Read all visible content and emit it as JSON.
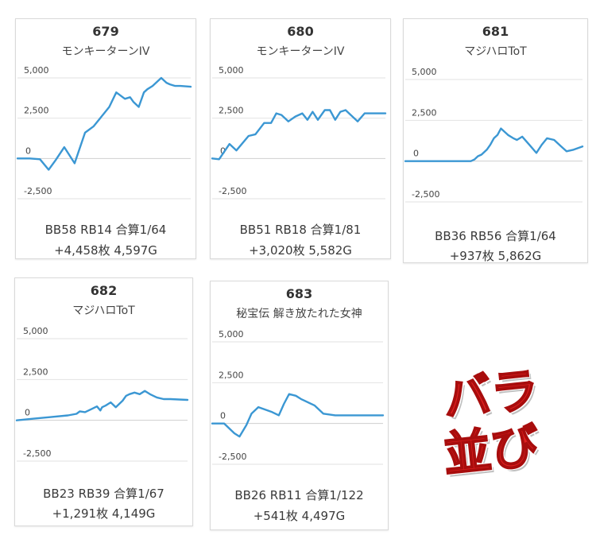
{
  "stamp": {
    "line1": "バラ",
    "line2": "並び"
  },
  "chart_data": [
    {
      "type": "line",
      "title": "679",
      "subtitle": "モンキーターンIV",
      "yticks": [
        "5,000",
        "2,500",
        "0",
        "-2,500"
      ],
      "ylim": [
        -2500,
        5000
      ],
      "stats1": "BB58 RB14 合算1/64",
      "stats2": "+4,458枚 4,597G",
      "x": [
        0,
        0.07,
        0.13,
        0.18,
        0.22,
        0.27,
        0.33,
        0.39,
        0.44,
        0.53,
        0.57,
        0.62,
        0.65,
        0.67,
        0.7,
        0.73,
        0.75,
        0.78,
        0.83,
        0.86,
        0.88,
        0.91,
        0.94,
        1.0
      ],
      "y": [
        0,
        0,
        -50,
        -700,
        -100,
        700,
        -300,
        1600,
        2000,
        3200,
        4100,
        3700,
        3800,
        3500,
        3200,
        4100,
        4300,
        4500,
        5000,
        4700,
        4600,
        4500,
        4500,
        4450
      ]
    },
    {
      "type": "line",
      "title": "680",
      "subtitle": "モンキーターンIV",
      "yticks": [
        "5,000",
        "2,500",
        "0",
        "-2,500"
      ],
      "ylim": [
        -2500,
        5000
      ],
      "stats1": "BB51 RB18 合算1/81",
      "stats2": "+3,020枚 5,582G",
      "x": [
        0,
        0.04,
        0.1,
        0.14,
        0.21,
        0.25,
        0.3,
        0.34,
        0.37,
        0.4,
        0.44,
        0.48,
        0.52,
        0.55,
        0.58,
        0.61,
        0.65,
        0.68,
        0.71,
        0.74,
        0.77,
        0.8,
        0.84,
        0.88,
        0.91,
        0.94,
        1.0
      ],
      "y": [
        0,
        -50,
        900,
        500,
        1400,
        1500,
        2200,
        2200,
        2800,
        2700,
        2300,
        2600,
        2800,
        2400,
        2900,
        2400,
        3000,
        3000,
        2400,
        2900,
        3000,
        2700,
        2300,
        2800,
        2800,
        2800,
        2800
      ]
    },
    {
      "type": "line",
      "title": "681",
      "subtitle": "マジハロToT",
      "yticks": [
        "5,000",
        "2,500",
        "0",
        "-2,500"
      ],
      "ylim": [
        -2500,
        5000
      ],
      "stats1": "BB36 RB56 合算1/64",
      "stats2": "+937枚 5,862G",
      "x": [
        0,
        0.37,
        0.39,
        0.41,
        0.43,
        0.46,
        0.48,
        0.5,
        0.52,
        0.54,
        0.56,
        0.58,
        0.61,
        0.63,
        0.66,
        0.7,
        0.74,
        0.77,
        0.8,
        0.84,
        0.88,
        0.91,
        0.95,
        1.0
      ],
      "y": [
        0,
        0,
        100,
        300,
        400,
        700,
        1000,
        1400,
        1600,
        2000,
        1800,
        1600,
        1400,
        1300,
        1500,
        1000,
        500,
        1000,
        1400,
        1300,
        900,
        600,
        700,
        900
      ]
    },
    {
      "type": "line",
      "title": "682",
      "subtitle": "マジハロToT",
      "yticks": [
        "5,000",
        "2,500",
        "0",
        "-2,500"
      ],
      "ylim": [
        -2500,
        5000
      ],
      "stats1": "BB23 RB39 合算1/67",
      "stats2": "+1,291枚 4,149G",
      "x": [
        0,
        0.1,
        0.2,
        0.3,
        0.35,
        0.37,
        0.4,
        0.44,
        0.47,
        0.49,
        0.5,
        0.52,
        0.55,
        0.58,
        0.6,
        0.62,
        0.64,
        0.66,
        0.69,
        0.72,
        0.75,
        0.78,
        0.82,
        0.86,
        0.9,
        1.0
      ],
      "y": [
        0,
        100,
        200,
        300,
        400,
        550,
        500,
        700,
        850,
        600,
        800,
        900,
        1100,
        800,
        1000,
        1200,
        1500,
        1600,
        1700,
        1600,
        1800,
        1600,
        1400,
        1300,
        1300,
        1250
      ]
    },
    {
      "type": "line",
      "title": "683",
      "subtitle": "秘宝伝 解き放たれた女神",
      "yticks": [
        "5,000",
        "2,500",
        "0",
        "-2,500"
      ],
      "ylim": [
        -2500,
        5000
      ],
      "stats1": "BB26 RB11 合算1/122",
      "stats2": "+541枚 4,497G",
      "x": [
        0,
        0.07,
        0.13,
        0.16,
        0.2,
        0.23,
        0.27,
        0.35,
        0.39,
        0.42,
        0.45,
        0.49,
        0.52,
        0.6,
        0.65,
        0.72,
        0.75,
        1.0
      ],
      "y": [
        0,
        0,
        -600,
        -800,
        -100,
        600,
        1000,
        700,
        500,
        1200,
        1800,
        1700,
        1500,
        1100,
        600,
        500,
        500,
        500
      ]
    }
  ]
}
